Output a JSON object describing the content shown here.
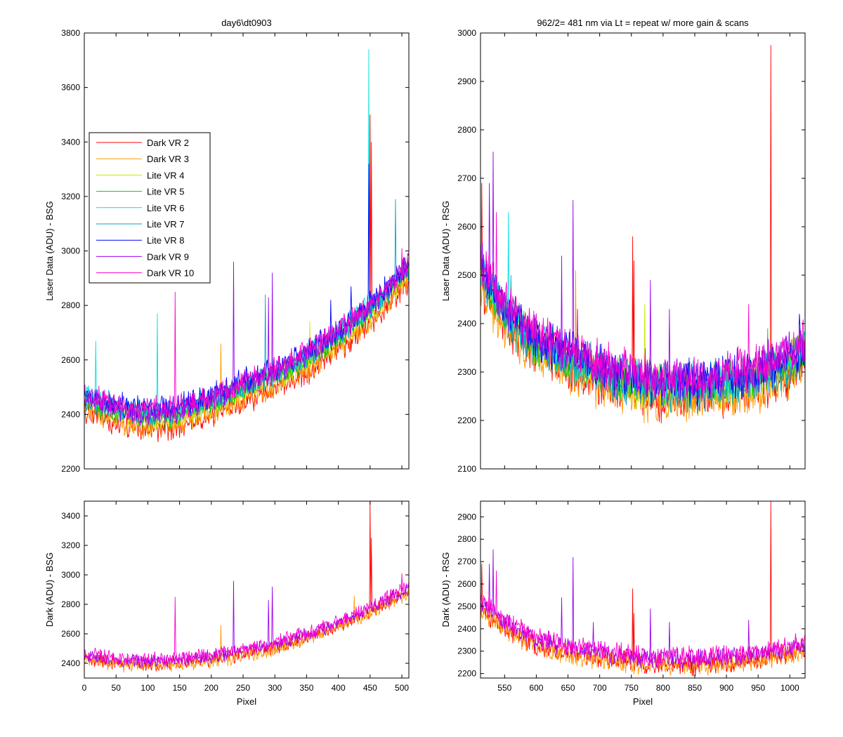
{
  "colors": {
    "Dark VR 2": "#ff0000",
    "Dark VR 3": "#ff9900",
    "Lite VR 4": "#c8e600",
    "Lite VR 5": "#00d000",
    "Lite VR 6": "#00e0e0",
    "Lite VR 7": "#00a6c8",
    "Lite VR 8": "#0000ff",
    "Dark VR 9": "#9900ee",
    "Dark VR 10": "#ff00cc"
  },
  "chart_data": [
    {
      "id": "top-left",
      "type": "line",
      "title": "day6\\dt0903",
      "xlabel": "",
      "ylabel": "Laser Data (ADU) - BSG",
      "xlim": [
        0,
        511
      ],
      "ylim": [
        2200,
        3800
      ],
      "xticks": [
        0,
        50,
        100,
        150,
        200,
        250,
        300,
        350,
        400,
        450,
        500
      ],
      "xtick_labels_shown": false,
      "yticks": [
        2200,
        2400,
        2600,
        2800,
        3000,
        3200,
        3400,
        3600,
        3800
      ],
      "legend": {
        "placement": "upper-left",
        "entries": [
          "Dark VR 2",
          "Dark VR 3",
          "Lite VR 4",
          "Lite VR 5",
          "Lite VR 6",
          "Lite VR 7",
          "Lite VR 8",
          "Dark VR 9",
          "Dark VR 10"
        ]
      },
      "baseline_curve": {
        "x": [
          0,
          50,
          100,
          150,
          200,
          250,
          300,
          350,
          400,
          450,
          480,
          511
        ],
        "y": [
          2440,
          2400,
          2380,
          2390,
          2430,
          2480,
          2530,
          2590,
          2670,
          2770,
          2840,
          2920
        ]
      },
      "series": [
        {
          "name": "Dark VR 2",
          "offset": -35,
          "spikes": [
            [
              450,
              3500
            ],
            [
              452,
              3400
            ]
          ]
        },
        {
          "name": "Dark VR 3",
          "offset": -25,
          "spikes": [
            [
              215,
              2660
            ]
          ]
        },
        {
          "name": "Lite VR 4",
          "offset": 5,
          "spikes": [
            [
              355,
              2740
            ]
          ]
        },
        {
          "name": "Lite VR 5",
          "offset": 10,
          "spikes": [
            [
              430,
              2760
            ]
          ]
        },
        {
          "name": "Lite VR 6",
          "offset": 30,
          "spikes": [
            [
              448,
              3740
            ],
            [
              115,
              2770
            ],
            [
              18,
              2670
            ]
          ]
        },
        {
          "name": "Lite VR 7",
          "offset": 20,
          "spikes": [
            [
              490,
              3190
            ],
            [
              285,
              2840
            ]
          ]
        },
        {
          "name": "Lite VR 8",
          "offset": 40,
          "spikes": [
            [
              388,
              2820
            ],
            [
              420,
              2870
            ],
            [
              448,
              3320
            ]
          ]
        },
        {
          "name": "Dark VR 9",
          "offset": 25,
          "spikes": [
            [
              235,
              2960
            ],
            [
              296,
              2920
            ],
            [
              290,
              2830
            ]
          ]
        },
        {
          "name": "Dark VR 10",
          "offset": 35,
          "spikes": [
            [
              143,
              2850
            ],
            [
              500,
              3010
            ]
          ]
        }
      ]
    },
    {
      "id": "top-right",
      "type": "line",
      "title": "962/2= 481 nm via Lt = repeat w/ more gain & scans",
      "xlabel": "",
      "ylabel": "Laser Data (ADU) - RSG",
      "xlim": [
        512,
        1024
      ],
      "ylim": [
        2100,
        3000
      ],
      "xticks": [
        550,
        600,
        650,
        700,
        750,
        800,
        850,
        900,
        950,
        1000
      ],
      "xtick_labels_shown": false,
      "yticks": [
        2100,
        2200,
        2300,
        2400,
        2500,
        2600,
        2700,
        2800,
        2900,
        3000
      ],
      "baseline_curve": {
        "x": [
          512,
          550,
          600,
          650,
          700,
          750,
          800,
          850,
          900,
          950,
          1000,
          1024
        ],
        "y": [
          2500,
          2410,
          2350,
          2320,
          2290,
          2270,
          2260,
          2260,
          2270,
          2280,
          2310,
          2330
        ]
      },
      "series": [
        {
          "name": "Dark VR 2",
          "offset": -15,
          "spikes": [
            [
              970,
              2975
            ],
            [
              752,
              2580
            ],
            [
              754,
              2530
            ],
            [
              514,
              2690
            ]
          ]
        },
        {
          "name": "Dark VR 3",
          "offset": -20,
          "spikes": [
            [
              662,
              2510
            ]
          ]
        },
        {
          "name": "Lite VR 4",
          "offset": 5,
          "spikes": [
            [
              771,
              2440
            ]
          ]
        },
        {
          "name": "Lite VR 5",
          "offset": 10,
          "spikes": [
            [
              965,
              2390
            ]
          ]
        },
        {
          "name": "Lite VR 6",
          "offset": 15,
          "spikes": [
            [
              556,
              2630
            ]
          ]
        },
        {
          "name": "Lite VR 7",
          "offset": 5,
          "spikes": [
            [
              560,
              2500
            ]
          ]
        },
        {
          "name": "Lite VR 8",
          "offset": 20,
          "spikes": [
            [
              1015,
              2420
            ]
          ]
        },
        {
          "name": "Dark VR 9",
          "offset": 25,
          "spikes": [
            [
              532,
              2755
            ],
            [
              526,
              2690
            ],
            [
              658,
              2655
            ],
            [
              640,
              2540
            ],
            [
              665,
              2430
            ],
            [
              780,
              2490
            ],
            [
              810,
              2430
            ]
          ]
        },
        {
          "name": "Dark VR 10",
          "offset": 30,
          "spikes": [
            [
              537,
              2630
            ],
            [
              935,
              2440
            ]
          ]
        }
      ]
    },
    {
      "id": "bottom-left",
      "type": "line",
      "title": "",
      "xlabel": "Pixel",
      "ylabel": "Dark (ADU) - BSG",
      "xlim": [
        0,
        511
      ],
      "ylim": [
        2300,
        3500
      ],
      "xticks": [
        0,
        50,
        100,
        150,
        200,
        250,
        300,
        350,
        400,
        450,
        500
      ],
      "xtick_labels_shown": true,
      "yticks": [
        2400,
        2600,
        2800,
        3000,
        3200,
        3400
      ],
      "baseline_curve": {
        "x": [
          0,
          50,
          100,
          150,
          200,
          250,
          300,
          350,
          400,
          450,
          480,
          511
        ],
        "y": [
          2440,
          2410,
          2400,
          2410,
          2430,
          2470,
          2520,
          2580,
          2660,
          2760,
          2830,
          2900
        ]
      },
      "series": [
        {
          "name": "Dark VR 2",
          "offset": -10,
          "spikes": [
            [
              450,
              3500
            ],
            [
              452,
              3250
            ]
          ]
        },
        {
          "name": "Dark VR 3",
          "offset": -20,
          "spikes": [
            [
              215,
              2660
            ],
            [
              425,
              2860
            ]
          ]
        },
        {
          "name": "Dark VR 9",
          "offset": 15,
          "spikes": [
            [
              235,
              2960
            ],
            [
              296,
              2920
            ],
            [
              290,
              2830
            ]
          ]
        },
        {
          "name": "Dark VR 10",
          "offset": 25,
          "spikes": [
            [
              143,
              2850
            ],
            [
              500,
              3010
            ]
          ]
        }
      ]
    },
    {
      "id": "bottom-right",
      "type": "line",
      "title": "",
      "xlabel": "Pixel",
      "ylabel": "Dark (ADU) - RSG",
      "xlim": [
        512,
        1024
      ],
      "ylim": [
        2180,
        2970
      ],
      "xticks": [
        550,
        600,
        650,
        700,
        750,
        800,
        850,
        900,
        950,
        1000
      ],
      "xtick_labels_shown": true,
      "yticks": [
        2200,
        2300,
        2400,
        2500,
        2600,
        2700,
        2800,
        2900
      ],
      "baseline_curve": {
        "x": [
          512,
          550,
          600,
          650,
          700,
          750,
          800,
          850,
          900,
          950,
          1000,
          1024
        ],
        "y": [
          2500,
          2410,
          2340,
          2300,
          2280,
          2260,
          2250,
          2250,
          2260,
          2270,
          2300,
          2320
        ]
      },
      "series": [
        {
          "name": "Dark VR 2",
          "offset": -10,
          "spikes": [
            [
              970,
              2970
            ],
            [
              752,
              2580
            ],
            [
              754,
              2470
            ],
            [
              514,
              2690
            ]
          ]
        },
        {
          "name": "Dark VR 3",
          "offset": -15,
          "spikes": []
        },
        {
          "name": "Dark VR 9",
          "offset": 15,
          "spikes": [
            [
              532,
              2755
            ],
            [
              526,
              2690
            ],
            [
              658,
              2720
            ],
            [
              640,
              2540
            ],
            [
              690,
              2430
            ],
            [
              780,
              2490
            ],
            [
              810,
              2430
            ],
            [
              935,
              2440
            ]
          ]
        },
        {
          "name": "Dark VR 10",
          "offset": 25,
          "spikes": [
            [
              537,
              2660
            ],
            [
              525,
              2540
            ]
          ]
        }
      ]
    }
  ]
}
